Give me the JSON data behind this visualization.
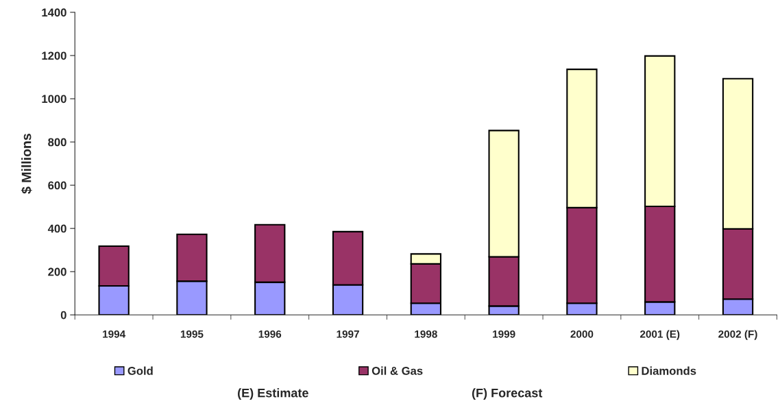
{
  "chart_data": {
    "type": "bar",
    "stacked": true,
    "ylabel": "$ Millions",
    "categories": [
      "1994",
      "1995",
      "1996",
      "1997",
      "1998",
      "1999",
      "2000",
      "2001 (E)",
      "2002 (F)"
    ],
    "series": [
      {
        "name": "Gold",
        "color": "#9999ff",
        "values": [
          134,
          156,
          151,
          139,
          54,
          41,
          54,
          60,
          73
        ]
      },
      {
        "name": "Oil & Gas",
        "color": "#993366",
        "values": [
          184,
          217,
          266,
          246,
          182,
          228,
          442,
          442,
          325
        ]
      },
      {
        "name": "Diamonds",
        "color": "#ffffcc",
        "values": [
          null,
          null,
          null,
          null,
          46,
          584,
          640,
          696,
          695
        ]
      }
    ],
    "ylim": [
      0,
      1400
    ],
    "yticks": [
      0,
      200,
      400,
      600,
      800,
      1000,
      1200,
      1400
    ],
    "legend": "bottom",
    "annotations": [
      "(E) Estimate",
      "(F) Forecast"
    ]
  }
}
